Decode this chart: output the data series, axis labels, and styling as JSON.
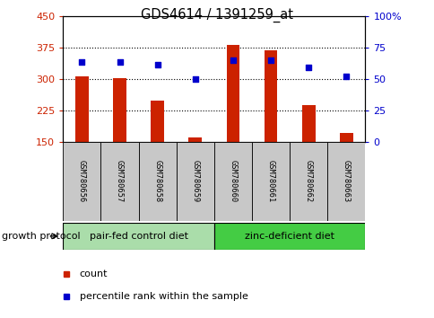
{
  "title": "GDS4614 / 1391259_at",
  "samples": [
    "GSM780656",
    "GSM780657",
    "GSM780658",
    "GSM780659",
    "GSM780660",
    "GSM780661",
    "GSM780662",
    "GSM780663"
  ],
  "counts": [
    305,
    302,
    248,
    160,
    381,
    368,
    238,
    170
  ],
  "percentiles": [
    63,
    63,
    61,
    50,
    65,
    65,
    59,
    52
  ],
  "ylim_left": [
    150,
    450
  ],
  "ylim_right": [
    0,
    100
  ],
  "yticks_left": [
    150,
    225,
    300,
    375,
    450
  ],
  "yticks_right": [
    0,
    25,
    50,
    75,
    100
  ],
  "ytick_labels_right": [
    "0",
    "25",
    "50",
    "75",
    "100%"
  ],
  "bar_color": "#cc2200",
  "dot_color": "#0000cc",
  "groups": [
    {
      "label": "pair-fed control diet",
      "color": "#aaddaa",
      "start": 0,
      "end": 3
    },
    {
      "label": "zinc-deficient diet",
      "color": "#44cc44",
      "start": 4,
      "end": 7
    }
  ],
  "group_protocol_label": "growth protocol",
  "legend_items": [
    {
      "label": "count",
      "color": "#cc2200"
    },
    {
      "label": "percentile rank within the sample",
      "color": "#0000cc"
    }
  ],
  "tick_color_left": "#cc2200",
  "tick_color_right": "#0000cc",
  "sample_bg_color": "#c8c8c8",
  "grid_yticks": [
    225,
    300,
    375
  ]
}
